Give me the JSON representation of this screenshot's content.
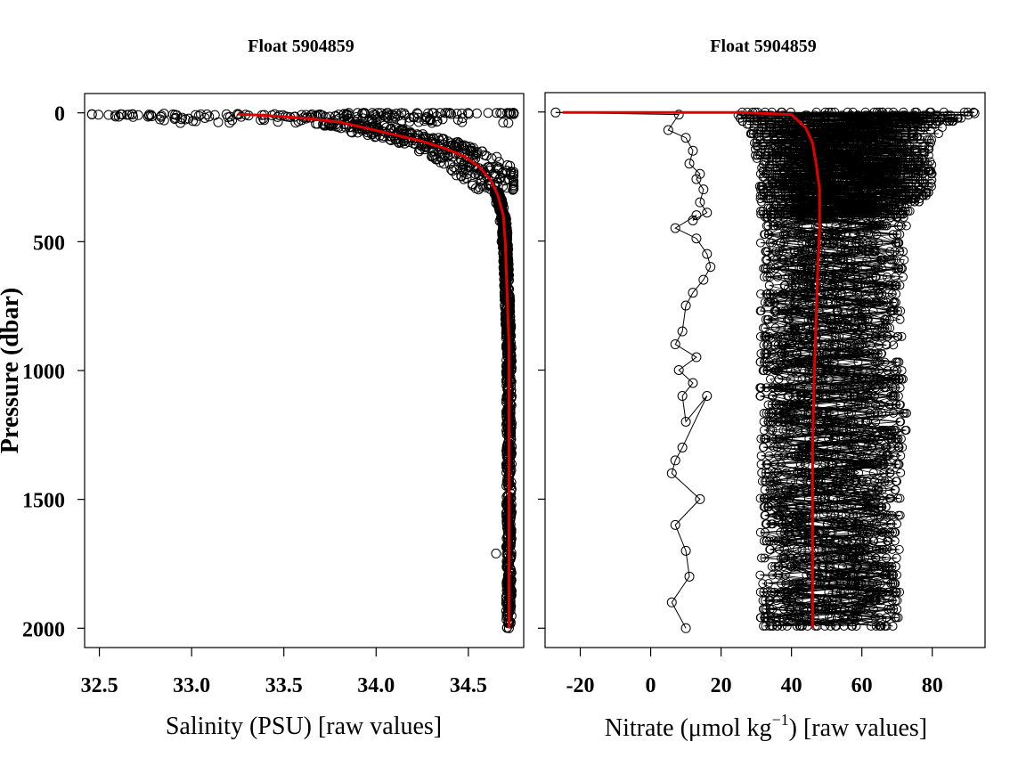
{
  "chart_data": [
    {
      "type": "line",
      "title": "Float 5904859",
      "xlabel": "Salinity (PSU)  [raw values]",
      "ylabel": "Pressure (dbar)",
      "xlim": [
        32.42,
        34.8
      ],
      "ylim": [
        2075,
        -75
      ],
      "x_ticks": [
        32.5,
        33.0,
        33.5,
        34.0,
        34.5
      ],
      "x_tick_labels": [
        "32.5",
        "33.0",
        "33.5",
        "34.0",
        "34.5"
      ],
      "y_ticks": [
        0,
        500,
        1000,
        1500,
        2000
      ],
      "y_tick_labels": [
        "0",
        "500",
        "1000",
        "1500",
        "2000"
      ],
      "grid": false,
      "series": [
        {
          "role": "raw profiles (points)",
          "color": "#000000",
          "x": [
            32.46,
            32.55,
            32.68,
            32.85,
            33.05,
            33.25,
            33.45,
            33.62,
            33.78,
            33.9,
            34.0,
            34.08,
            34.15,
            34.22,
            34.3,
            34.38,
            34.45,
            34.52,
            34.58,
            34.62,
            34.65,
            34.67,
            34.68,
            34.69,
            34.7,
            34.7,
            34.71,
            34.71,
            34.71,
            34.72,
            34.72,
            34.72,
            34.72,
            34.72,
            34.72,
            34.72,
            34.65
          ],
          "y": [
            5,
            8,
            5,
            3,
            6,
            4,
            5,
            8,
            12,
            25,
            40,
            60,
            80,
            100,
            120,
            140,
            160,
            180,
            220,
            280,
            350,
            420,
            500,
            600,
            700,
            800,
            900,
            1000,
            1100,
            1200,
            1300,
            1400,
            1500,
            1600,
            1800,
            2000,
            1710
          ]
        },
        {
          "role": "median profile",
          "color": "#e00000",
          "x": [
            33.25,
            33.4,
            33.6,
            33.8,
            33.95,
            34.1,
            34.25,
            34.38,
            34.48,
            34.56,
            34.62,
            34.66,
            34.69,
            34.7,
            34.71,
            34.72,
            34.72,
            34.72,
            34.72,
            34.72
          ],
          "y": [
            5,
            10,
            20,
            35,
            60,
            85,
            110,
            140,
            170,
            210,
            260,
            320,
            400,
            500,
            700,
            900,
            1200,
            1500,
            1800,
            2000
          ]
        }
      ]
    },
    {
      "type": "line",
      "title": "Float 5904859",
      "xlabel_parts": [
        "Nitrate (μmol kg",
        "−1",
        ")  [raw values]"
      ],
      "ylabel": "",
      "xlim": [
        -30,
        95
      ],
      "ylim": [
        2075,
        -75
      ],
      "x_ticks": [
        -20,
        0,
        20,
        40,
        60,
        80
      ],
      "x_tick_labels": [
        "-20",
        "0",
        "20",
        "40",
        "60",
        "80"
      ],
      "y_ticks": [
        0,
        500,
        1000,
        1500,
        2000
      ],
      "grid": false,
      "series": [
        {
          "role": "single outlier profile",
          "color": "#000000",
          "x": [
            -27,
            8,
            5,
            10,
            12,
            11,
            14,
            13,
            15,
            14,
            16,
            12,
            13,
            7,
            13,
            16,
            17,
            15,
            12,
            10,
            9,
            7,
            13,
            8,
            12,
            9,
            10,
            16,
            9,
            7,
            6,
            14,
            7,
            10,
            11,
            6,
            10
          ],
          "y": [
            2,
            10,
            70,
            100,
            150,
            200,
            240,
            260,
            300,
            350,
            390,
            420,
            400,
            450,
            490,
            550,
            600,
            650,
            700,
            750,
            850,
            900,
            950,
            1000,
            1050,
            1100,
            1200,
            1100,
            1300,
            1350,
            1400,
            1500,
            1600,
            1700,
            1800,
            1900,
            2000
          ]
        },
        {
          "role": "median profile",
          "color": "#e00000",
          "x": [
            -25,
            0,
            25,
            40,
            44,
            46,
            47,
            48,
            48,
            47.5,
            47,
            46.5,
            46,
            46,
            46,
            46
          ],
          "y": [
            2,
            2,
            2,
            10,
            60,
            120,
            200,
            300,
            450,
            600,
            800,
            1000,
            1300,
            1600,
            1900,
            2000
          ]
        }
      ],
      "raw_profiles": {
        "envelope_min_x": [
          24,
          29,
          31,
          31,
          31,
          31,
          31,
          31,
          31,
          31,
          31,
          31
        ],
        "envelope_max_x": [
          92,
          80,
          80,
          73,
          72,
          71,
          72,
          73,
          71,
          71,
          71,
          71
        ],
        "envelope_y": [
          0,
          100,
          300,
          400,
          600,
          800,
          1000,
          1200,
          1400,
          1600,
          1800,
          2000
        ]
      }
    }
  ]
}
